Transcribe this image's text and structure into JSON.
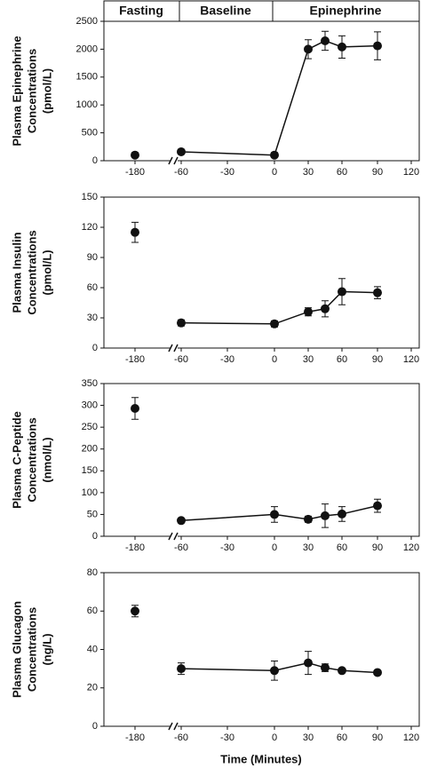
{
  "header_labels": [
    "Fasting",
    "Baseline",
    "Epinephrine"
  ],
  "xlabel": "Time (Minutes)",
  "chart_data": [
    {
      "type": "line",
      "ylabel": [
        "Plasma Epinephrine",
        "Concentrations",
        "(pmol/L)"
      ],
      "ylim": [
        0,
        2500
      ],
      "yticks": [
        0,
        500,
        1000,
        1500,
        2000,
        2500
      ],
      "xlim": [
        -180,
        120
      ],
      "xticks": [
        -180,
        -60,
        -30,
        0,
        30,
        60,
        90,
        120
      ],
      "series": [
        {
          "color": "#111111",
          "x": [
            -180
          ],
          "values": [
            100
          ],
          "errors": [
            15
          ]
        },
        {
          "color": "#111111",
          "x": [
            -60,
            0,
            30,
            45,
            60,
            90
          ],
          "values": [
            160,
            100,
            2000,
            2150,
            2040,
            2060
          ],
          "errors": [
            20,
            15,
            170,
            170,
            200,
            250
          ]
        }
      ]
    },
    {
      "type": "line",
      "ylabel": [
        "Plasma Insulin",
        "Concentrations",
        "(pmol/L)"
      ],
      "ylim": [
        0,
        150
      ],
      "yticks": [
        0,
        30,
        60,
        90,
        120,
        150
      ],
      "xlim": [
        -180,
        120
      ],
      "xticks": [
        -180,
        -60,
        -30,
        0,
        30,
        60,
        90,
        120
      ],
      "series": [
        {
          "color": "#111111",
          "x": [
            -180
          ],
          "values": [
            115
          ],
          "errors": [
            10
          ]
        },
        {
          "color": "#111111",
          "x": [
            -60,
            0,
            30,
            45,
            60,
            90
          ],
          "values": [
            25,
            24,
            36,
            39,
            56,
            55
          ],
          "errors": [
            3,
            3,
            4,
            8,
            13,
            6
          ]
        }
      ]
    },
    {
      "type": "line",
      "ylabel": [
        "Plasma C-Peptide",
        "Concentrations",
        "(nmol/L)"
      ],
      "ylim": [
        0,
        350
      ],
      "yticks": [
        0,
        50,
        100,
        150,
        200,
        250,
        300,
        350
      ],
      "xlim": [
        -180,
        120
      ],
      "xticks": [
        -180,
        -60,
        -30,
        0,
        30,
        60,
        90,
        120
      ],
      "series": [
        {
          "color": "#111111",
          "x": [
            -180
          ],
          "values": [
            293
          ],
          "errors": [
            25
          ]
        },
        {
          "color": "#111111",
          "x": [
            -60,
            0,
            30,
            45,
            60,
            90
          ],
          "values": [
            36,
            50,
            39,
            47,
            51,
            70
          ],
          "errors": [
            5,
            18,
            7,
            27,
            17,
            15
          ]
        }
      ]
    },
    {
      "type": "line",
      "ylabel": [
        "Plasma Glucagon",
        "Concentrations",
        "(ng/L)"
      ],
      "ylim": [
        0,
        80
      ],
      "yticks": [
        0,
        20,
        40,
        60,
        80
      ],
      "xlim": [
        -180,
        120
      ],
      "xticks": [
        -180,
        -60,
        -30,
        0,
        30,
        60,
        90,
        120
      ],
      "series": [
        {
          "color": "#111111",
          "x": [
            -180
          ],
          "values": [
            60
          ],
          "errors": [
            3
          ]
        },
        {
          "color": "#111111",
          "x": [
            -60,
            0,
            30,
            45,
            60,
            90
          ],
          "values": [
            30,
            29,
            33,
            30.5,
            29,
            28
          ],
          "errors": [
            3,
            5,
            6,
            2,
            1,
            1
          ]
        }
      ]
    }
  ]
}
